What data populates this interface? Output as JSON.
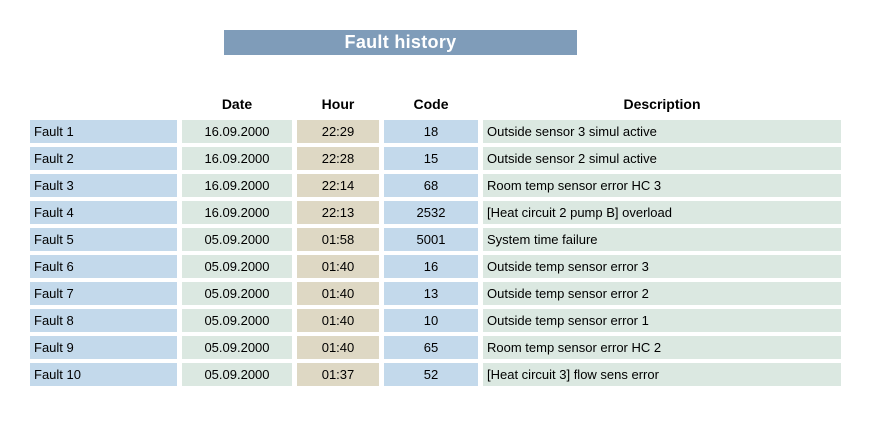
{
  "title": "Fault history",
  "columns": {
    "fault": "",
    "date": "Date",
    "hour": "Hour",
    "code": "Code",
    "description": "Description"
  },
  "rows": [
    {
      "label": "Fault 1",
      "date": "16.09.2000",
      "hour": "22:29",
      "code": "18",
      "description": "Outside sensor 3 simul active"
    },
    {
      "label": "Fault 2",
      "date": "16.09.2000",
      "hour": "22:28",
      "code": "15",
      "description": "Outside sensor 2 simul active"
    },
    {
      "label": "Fault 3",
      "date": "16.09.2000",
      "hour": "22:14",
      "code": "68",
      "description": "Room temp sensor error HC 3"
    },
    {
      "label": "Fault 4",
      "date": "16.09.2000",
      "hour": "22:13",
      "code": "2532",
      "description": "[Heat circuit 2 pump B] overload"
    },
    {
      "label": "Fault 5",
      "date": "05.09.2000",
      "hour": "01:58",
      "code": "5001",
      "description": "System time failure"
    },
    {
      "label": "Fault 6",
      "date": "05.09.2000",
      "hour": "01:40",
      "code": "16",
      "description": "Outside temp sensor error 3"
    },
    {
      "label": "Fault 7",
      "date": "05.09.2000",
      "hour": "01:40",
      "code": "13",
      "description": "Outside temp sensor error 2"
    },
    {
      "label": "Fault 8",
      "date": "05.09.2000",
      "hour": "01:40",
      "code": "10",
      "description": "Outside temp sensor error 1"
    },
    {
      "label": "Fault 9",
      "date": "05.09.2000",
      "hour": "01:40",
      "code": "65",
      "description": "Room temp sensor error HC 2"
    },
    {
      "label": "Fault 10",
      "date": "05.09.2000",
      "hour": "01:37",
      "code": "52",
      "description": "[Heat circuit 3] flow sens error"
    }
  ],
  "colors": {
    "banner_bg": "#7f9cb9",
    "blue_cell": "#c3d9eb",
    "mint_cell": "#dbe8e1",
    "tan_cell": "#ded8c4",
    "text": "#000000",
    "title_text": "#ffffff"
  }
}
